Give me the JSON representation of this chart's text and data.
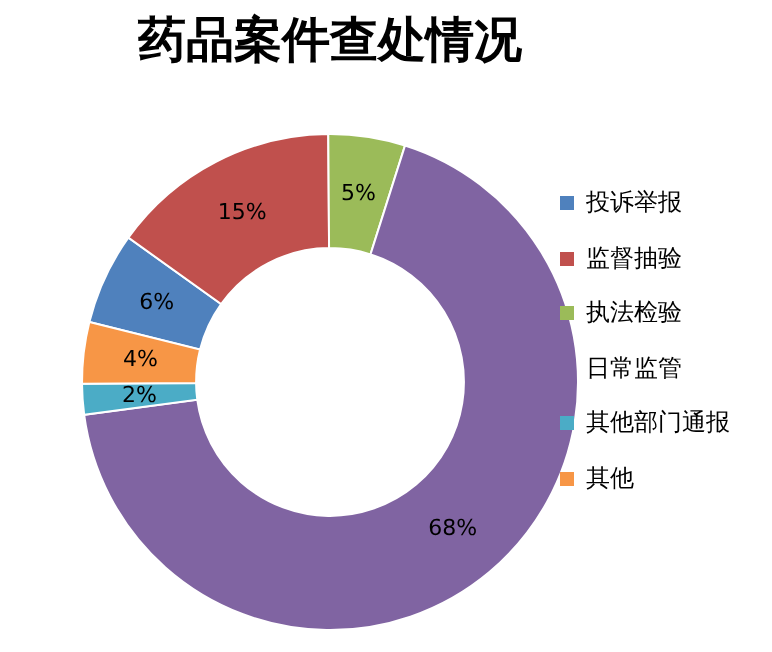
{
  "chart_data": {
    "type": "donut",
    "title": "药品案件查处情况",
    "categories": [
      "投诉举报",
      "监督抽验",
      "执法检验",
      "日常监管",
      "其他部门通报",
      "其他"
    ],
    "values": [
      6,
      15,
      5,
      68,
      2,
      4
    ],
    "colors": [
      "#4f81bd",
      "#c0504d",
      "#9bbb59",
      "#8064a2",
      "#4bacc6",
      "#f79646"
    ],
    "value_labels": [
      "6%",
      "15%",
      "5%",
      "68%",
      "2%",
      "4%"
    ],
    "legend": "right"
  }
}
